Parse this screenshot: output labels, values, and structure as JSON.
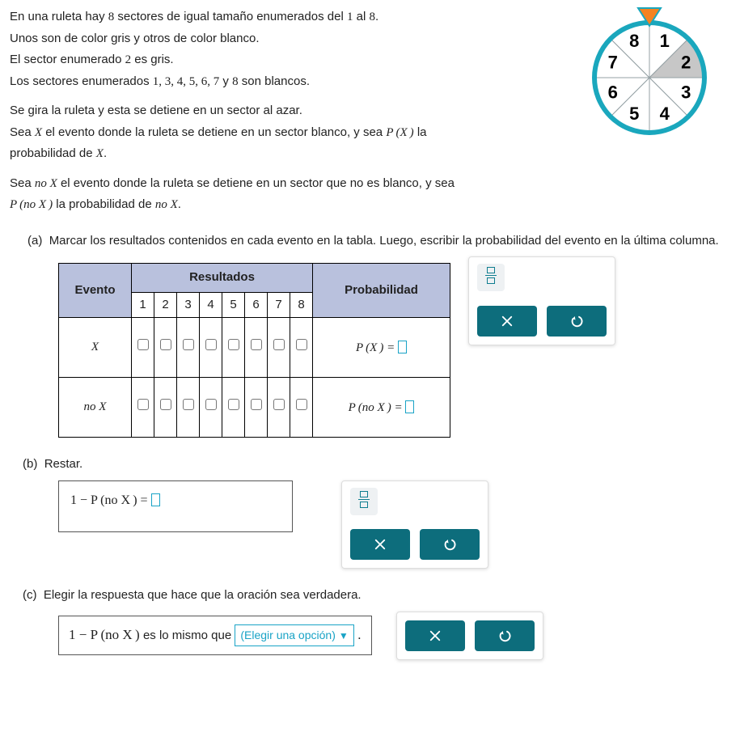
{
  "intro": {
    "l1_a": "En una ruleta hay ",
    "l1_b": "8",
    "l1_c": " sectores de igual tamaño enumerados del ",
    "l1_d": "1",
    "l1_e": " al ",
    "l1_f": "8",
    "l1_g": ".",
    "l2": "Unos son de color gris y otros de color blanco.",
    "l3_a": "El sector enumerado ",
    "l3_b": "2",
    "l3_c": " es gris.",
    "l4_a": "Los sectores enumerados ",
    "l4_b": "1, 3, 4, 5, 6, 7",
    "l4_c": " y ",
    "l4_d": "8",
    "l4_e": " son blancos.",
    "l5": "Se gira la ruleta y esta se detiene en un sector al azar.",
    "l6_a": "Sea ",
    "l6_b": "X",
    "l6_c": " el evento donde la ruleta se detiene en un sector blanco, y sea ",
    "l6_d": "P (X )",
    "l6_e": " la",
    "l7_a": "probabilidad de ",
    "l7_b": "X",
    "l7_c": ".",
    "l8_a": "Sea ",
    "l8_b": "no X",
    "l8_c": " el evento donde la ruleta se detiene en un sector que no es blanco, y sea",
    "l9_a": "P (no X )",
    "l9_b": " la probabilidad de ",
    "l9_c": "no X",
    "l9_d": "."
  },
  "spinner": {
    "labels": [
      "1",
      "2",
      "3",
      "4",
      "5",
      "6",
      "7",
      "8"
    ],
    "gray_sector_index": 1,
    "ring_color": "#1aa7bd",
    "gray_color": "#c7c7c7",
    "white_color": "#ffffff",
    "pointer_fill": "#f58220",
    "pointer_stroke": "#1aa7bd",
    "label_font_size": 22
  },
  "parts": {
    "a": {
      "label": "(a)",
      "text": "Marcar los resultados contenidos en cada evento en la tabla. Luego, escribir la probabilidad del evento en la última columna."
    },
    "b": {
      "label": "(b)",
      "text": "Restar."
    },
    "c": {
      "label": "(c)",
      "text": "Elegir la respuesta que hace que la oración sea verdadera."
    }
  },
  "table": {
    "evento_header": "Evento",
    "resultados_header": "Resultados",
    "prob_header": "Probabilidad",
    "cols": [
      "1",
      "2",
      "3",
      "4",
      "5",
      "6",
      "7",
      "8"
    ],
    "row1_name": "X",
    "row1_prob_a": "P (X ) = ",
    "row2_name": "no X",
    "row2_prob_a": "P (no X ) = "
  },
  "partB": {
    "expr": "1 − P (no X ) = "
  },
  "partC": {
    "sent_a": "1 − P (no X )",
    "sent_b": " es lo mismo que ",
    "dropdown": "(Elegir una opción)",
    "period": "."
  },
  "buttons": {
    "close_title": "close",
    "undo_title": "undo",
    "frac_title": "fraction"
  },
  "colors": {
    "teal": "#0d6d7c",
    "header_bg": "#b9c1dd",
    "link": "#19a3c6"
  }
}
